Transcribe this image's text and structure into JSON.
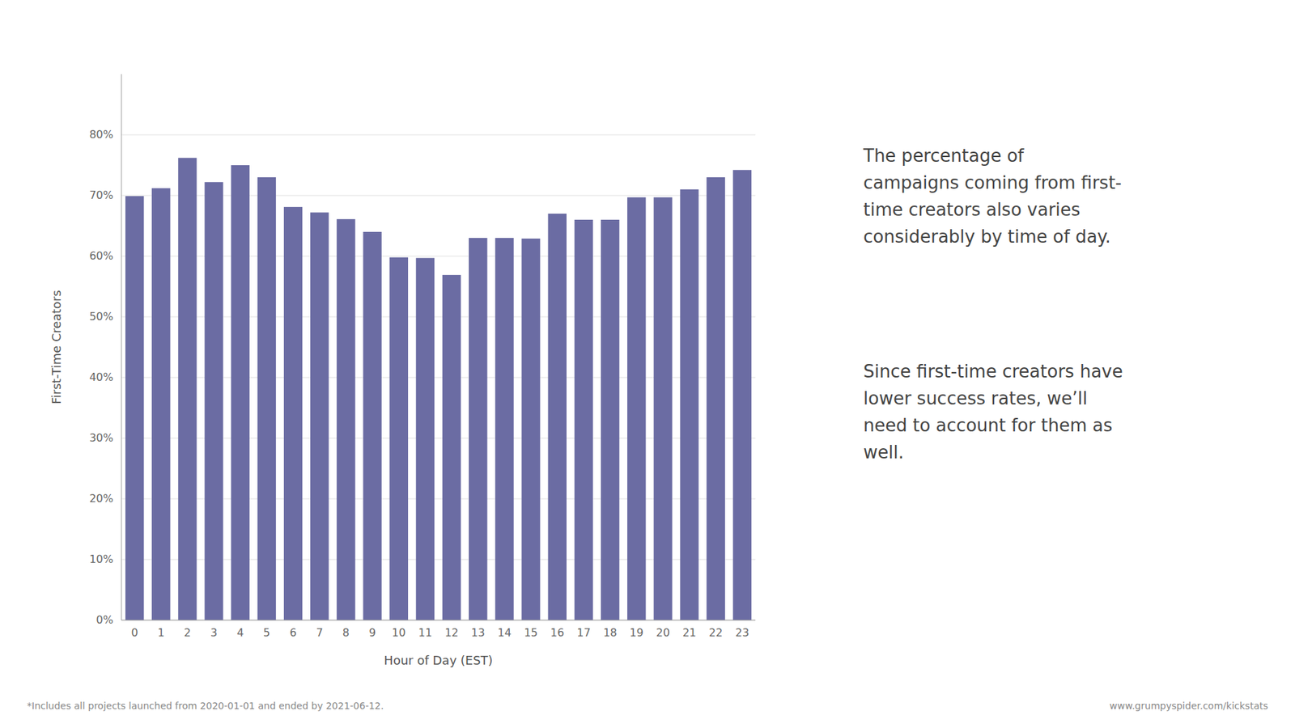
{
  "chart_data": {
    "type": "bar",
    "categories": [
      0,
      1,
      2,
      3,
      4,
      5,
      6,
      7,
      8,
      9,
      10,
      11,
      12,
      13,
      14,
      15,
      16,
      17,
      18,
      19,
      20,
      21,
      22,
      23
    ],
    "values": [
      0.699,
      0.712,
      0.762,
      0.722,
      0.75,
      0.73,
      0.681,
      0.672,
      0.661,
      0.64,
      0.598,
      0.597,
      0.569,
      0.63,
      0.63,
      0.629,
      0.67,
      0.66,
      0.66,
      0.697,
      0.697,
      0.71,
      0.73,
      0.742
    ],
    "color": "#6b6ca3",
    "x_label": "Hour of Day (EST)",
    "y_label": "First-Time Creators",
    "ylim": [
      0,
      0.9
    ],
    "yticks": [
      {
        "value": 0.0,
        "label": "0%"
      },
      {
        "value": 0.1,
        "label": "10%"
      },
      {
        "value": 0.2,
        "label": "20%"
      },
      {
        "value": 0.3,
        "label": "30%"
      },
      {
        "value": 0.4,
        "label": "40%"
      },
      {
        "value": 0.5,
        "label": "50%"
      },
      {
        "value": 0.6,
        "label": "60%"
      },
      {
        "value": 0.7,
        "label": "70%"
      },
      {
        "value": 0.8,
        "label": "80%"
      }
    ],
    "grid": true,
    "annotations": [
      "The percentage of\ncampaigns coming from first-\ntime creators also varies\nconsiderably by time of day.",
      "Since first-time creators have\nlower success rates, we’ll\nneed to account for them as\nwell."
    ],
    "footnote": "*Includes all projects launched from 2020-01-01 and ended by 2021-06-12.",
    "url": "www.grumpyspider.com/kickstats"
  }
}
